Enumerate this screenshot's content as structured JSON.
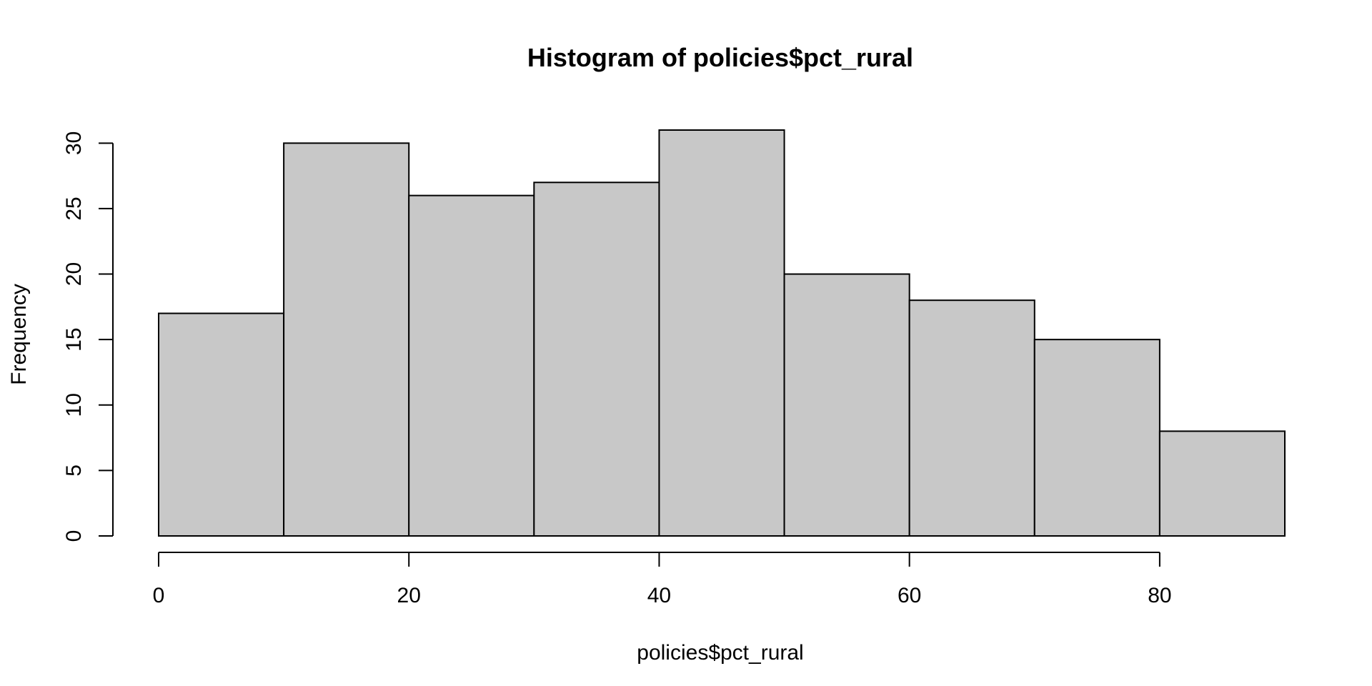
{
  "chart_data": {
    "type": "bar",
    "title": "Histogram of policies$pct_rural",
    "xlabel": "policies$pct_rural",
    "ylabel": "Frequency",
    "bins": [
      {
        "start": 0,
        "end": 10,
        "value": 17
      },
      {
        "start": 10,
        "end": 20,
        "value": 30
      },
      {
        "start": 20,
        "end": 30,
        "value": 26
      },
      {
        "start": 30,
        "end": 40,
        "value": 27
      },
      {
        "start": 40,
        "end": 50,
        "value": 31
      },
      {
        "start": 50,
        "end": 60,
        "value": 20
      },
      {
        "start": 60,
        "end": 70,
        "value": 18
      },
      {
        "start": 70,
        "end": 80,
        "value": 15
      },
      {
        "start": 80,
        "end": 90,
        "value": 8
      }
    ],
    "xlim": [
      0,
      90
    ],
    "ylim": [
      0,
      31
    ],
    "x_ticks": [
      "0",
      "20",
      "40",
      "60",
      "80"
    ],
    "y_ticks": [
      "0",
      "5",
      "10",
      "15",
      "20",
      "25",
      "30"
    ],
    "grid": false,
    "colors": {
      "bar_fill": "#c8c8c8",
      "bar_stroke": "#000000"
    }
  }
}
